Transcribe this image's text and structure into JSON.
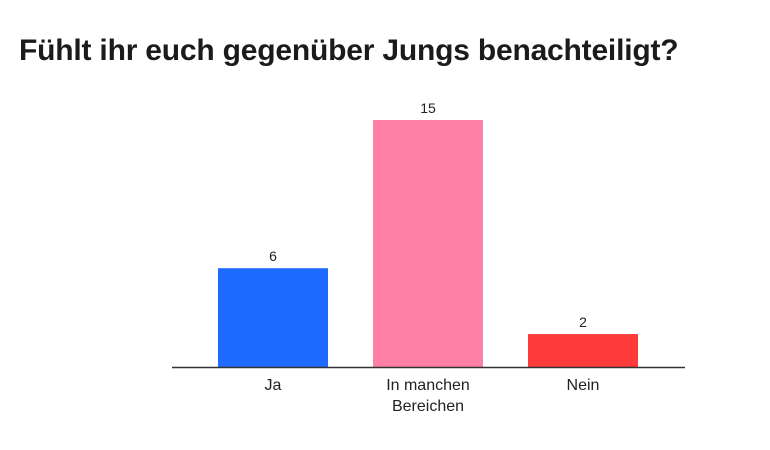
{
  "chart_data": {
    "type": "bar",
    "title": "Fühlt ihr euch gegenüber Jungs benachteiligt?",
    "categories": [
      [
        "Ja"
      ],
      [
        "In manchen",
        "Bereichen"
      ],
      [
        "Nein"
      ]
    ],
    "values": [
      6,
      15,
      2
    ],
    "colors": [
      "#1f6bff",
      "#ff80a6",
      "#ff3a3a"
    ],
    "axis_color": "#333333",
    "ylim": [
      0,
      15
    ],
    "grid": false,
    "legend": "none"
  }
}
